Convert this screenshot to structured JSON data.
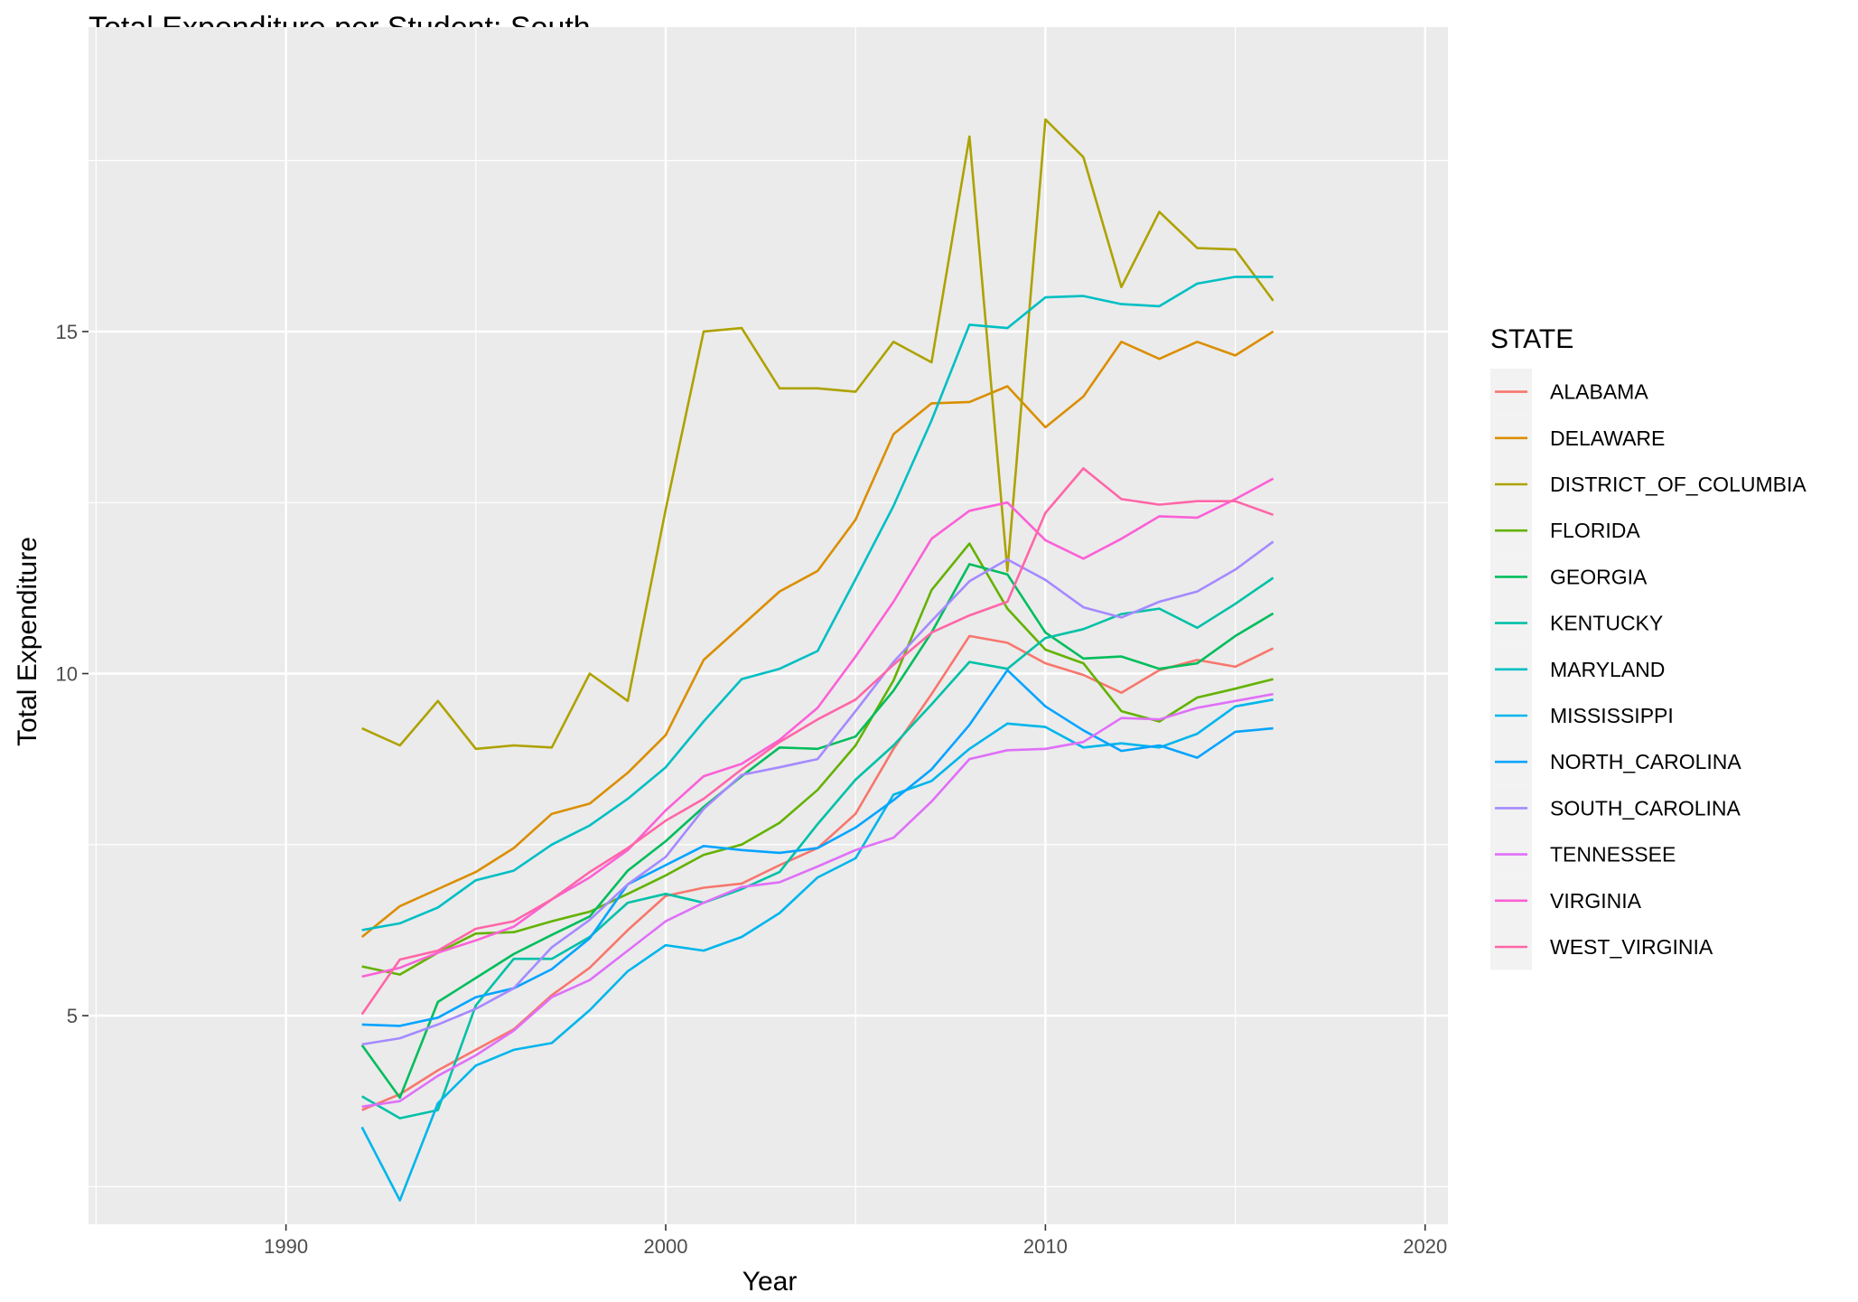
{
  "chart_data": {
    "type": "line",
    "title": "Total Expenditure per Student: South",
    "xlabel": "Year",
    "ylabel": "Total Expenditure",
    "xlim": [
      1984.8,
      2020.6
    ],
    "ylim": [
      1.95,
      19.45
    ],
    "x_ticks": [
      1990,
      2000,
      2010,
      2020
    ],
    "y_ticks": [
      5,
      10,
      15
    ],
    "grid": true,
    "legend_position": "right",
    "legend_title": "STATE",
    "x": [
      1992,
      1993,
      1994,
      1995,
      1996,
      1997,
      1998,
      1999,
      2000,
      2001,
      2002,
      2003,
      2004,
      2005,
      2006,
      2007,
      2008,
      2009,
      2010,
      2011,
      2012,
      2013,
      2014,
      2015,
      2016
    ],
    "series": [
      {
        "name": "ALABAMA",
        "color": "#F8766D",
        "values": [
          3.62,
          3.85,
          4.2,
          4.5,
          4.8,
          5.3,
          5.7,
          6.25,
          6.75,
          6.87,
          6.93,
          7.2,
          7.45,
          7.95,
          8.9,
          9.7,
          10.55,
          10.45,
          10.15,
          9.98,
          9.72,
          10.05,
          10.2,
          10.1,
          10.37
        ]
      },
      {
        "name": "DELAWARE",
        "color": "#DB8E00",
        "values": [
          6.15,
          6.6,
          6.85,
          7.1,
          7.45,
          7.95,
          8.1,
          8.55,
          9.1,
          10.2,
          10.7,
          11.2,
          11.5,
          12.25,
          13.5,
          13.95,
          13.97,
          14.2,
          13.6,
          14.05,
          14.85,
          14.6,
          14.85,
          14.65,
          15.0
        ]
      },
      {
        "name": "DISTRICT_OF_COLUMBIA",
        "color": "#AEA200",
        "values": [
          9.2,
          8.95,
          9.6,
          8.9,
          8.95,
          8.92,
          10.0,
          9.6,
          12.4,
          15.0,
          15.05,
          14.17,
          14.17,
          14.12,
          14.85,
          14.55,
          17.85,
          11.5,
          18.1,
          17.55,
          15.65,
          16.75,
          16.22,
          16.2,
          15.45
        ]
      },
      {
        "name": "FLORIDA",
        "color": "#64B200",
        "values": [
          5.72,
          5.6,
          5.92,
          6.2,
          6.22,
          6.38,
          6.52,
          6.78,
          7.05,
          7.35,
          7.5,
          7.82,
          8.3,
          8.95,
          9.9,
          11.22,
          11.9,
          10.95,
          10.35,
          10.15,
          9.45,
          9.3,
          9.65,
          9.78,
          9.92
        ]
      },
      {
        "name": "GEORGIA",
        "color": "#00BD5C",
        "values": [
          4.57,
          3.8,
          5.2,
          5.55,
          5.9,
          6.18,
          6.45,
          7.12,
          7.55,
          8.05,
          8.5,
          8.92,
          8.9,
          9.08,
          9.75,
          10.6,
          11.6,
          11.45,
          10.6,
          10.22,
          10.25,
          10.07,
          10.15,
          10.55,
          10.88
        ]
      },
      {
        "name": "KENTUCKY",
        "color": "#00C1A7",
        "values": [
          3.82,
          3.5,
          3.62,
          5.15,
          5.83,
          5.83,
          6.15,
          6.65,
          6.78,
          6.65,
          6.85,
          7.1,
          7.8,
          8.45,
          8.95,
          9.55,
          10.17,
          10.07,
          10.52,
          10.65,
          10.87,
          10.95,
          10.67,
          11.02,
          11.4
        ]
      },
      {
        "name": "MARYLAND",
        "color": "#00BFC4",
        "values": [
          6.25,
          6.35,
          6.58,
          6.98,
          7.12,
          7.5,
          7.78,
          8.17,
          8.63,
          9.3,
          9.92,
          10.07,
          10.33,
          11.38,
          12.45,
          13.7,
          15.1,
          15.05,
          15.5,
          15.52,
          15.4,
          15.37,
          15.7,
          15.8,
          15.8
        ]
      },
      {
        "name": "MISSISSIPPI",
        "color": "#00B6EB",
        "values": [
          3.37,
          2.3,
          3.72,
          4.27,
          4.5,
          4.6,
          5.08,
          5.65,
          6.03,
          5.95,
          6.15,
          6.5,
          7.02,
          7.3,
          8.23,
          8.43,
          8.9,
          9.27,
          9.22,
          8.92,
          8.98,
          8.92,
          9.12,
          9.52,
          9.62
        ]
      },
      {
        "name": "NORTH_CAROLINA",
        "color": "#06A4FF",
        "values": [
          4.87,
          4.85,
          4.97,
          5.27,
          5.4,
          5.68,
          6.13,
          6.92,
          7.2,
          7.48,
          7.42,
          7.38,
          7.45,
          7.75,
          8.15,
          8.6,
          9.25,
          10.05,
          9.52,
          9.17,
          8.87,
          8.95,
          8.77,
          9.15,
          9.2
        ]
      },
      {
        "name": "SOUTH_CAROLINA",
        "color": "#A58AFF",
        "values": [
          4.58,
          4.67,
          4.87,
          5.1,
          5.4,
          6.0,
          6.4,
          6.92,
          7.32,
          8.02,
          8.52,
          8.63,
          8.75,
          9.45,
          10.17,
          10.77,
          11.35,
          11.67,
          11.37,
          10.97,
          10.82,
          11.05,
          11.2,
          11.52,
          11.93
        ]
      },
      {
        "name": "TENNESSEE",
        "color": "#DF70F8",
        "values": [
          3.67,
          3.75,
          4.12,
          4.42,
          4.78,
          5.27,
          5.52,
          5.95,
          6.38,
          6.65,
          6.88,
          6.95,
          7.18,
          7.42,
          7.6,
          8.13,
          8.75,
          8.88,
          8.9,
          9.0,
          9.35,
          9.33,
          9.5,
          9.6,
          9.7
        ]
      },
      {
        "name": "VIRGINIA",
        "color": "#FB61D7",
        "values": [
          5.57,
          5.7,
          5.92,
          6.1,
          6.3,
          6.7,
          7.02,
          7.42,
          8.0,
          8.5,
          8.68,
          9.03,
          9.5,
          10.25,
          11.05,
          11.97,
          12.38,
          12.5,
          11.95,
          11.68,
          11.97,
          12.3,
          12.28,
          12.55,
          12.85
        ]
      },
      {
        "name": "WEST_VIRGINIA",
        "color": "#FF66A8",
        "values": [
          5.02,
          5.82,
          5.95,
          6.27,
          6.38,
          6.7,
          7.1,
          7.45,
          7.85,
          8.17,
          8.6,
          9.0,
          9.33,
          9.62,
          10.13,
          10.6,
          10.85,
          11.05,
          12.35,
          13.0,
          12.55,
          12.47,
          12.52,
          12.52,
          12.32
        ]
      }
    ]
  }
}
